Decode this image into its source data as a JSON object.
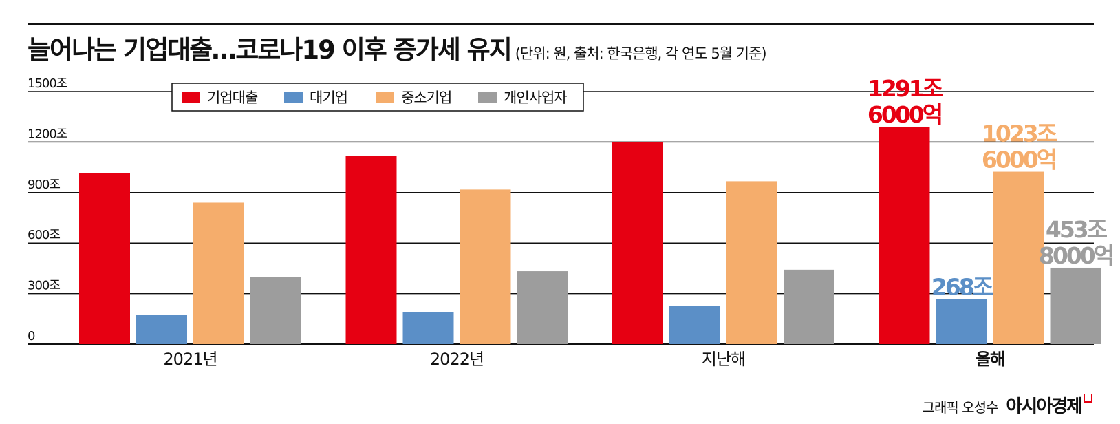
{
  "header": {
    "title": "늘어나는 기업대출…코로나19 이후 증가세 유지",
    "subtitle": "(단위: 원, 출처: 한국은행, 각 연도 5월 기준)"
  },
  "footer": {
    "credit": "그래픽 오성수",
    "brand": "아시아경제"
  },
  "colors": {
    "기업대출": "#e60012",
    "대기업": "#5b8fc7",
    "중소기업": "#f5ad6c",
    "개인사업자": "#9d9d9d"
  },
  "chart_data": {
    "type": "bar",
    "categories": [
      "2021년",
      "2022년",
      "지난해",
      "올해"
    ],
    "series": [
      {
        "name": "기업대출",
        "values": [
          1016,
          1117,
          1198,
          1291.6
        ]
      },
      {
        "name": "대기업",
        "values": [
          173,
          191,
          228,
          268
        ]
      },
      {
        "name": "중소기업",
        "values": [
          840,
          918,
          967,
          1023.6
        ]
      },
      {
        "name": "개인사업자",
        "values": [
          400,
          433,
          442,
          453.8
        ]
      }
    ],
    "ylim": [
      0,
      1500
    ],
    "yticks": [
      0,
      300,
      600,
      900,
      1200,
      1500
    ],
    "ytick_labels": [
      "0",
      "300조",
      "600조",
      "900조",
      "1200조",
      "1500조"
    ],
    "grid": true,
    "legend": "top-left",
    "annotations": [
      {
        "series": 0,
        "category": 3,
        "lines": [
          "1291조",
          "6000억"
        ]
      },
      {
        "series": 1,
        "category": 3,
        "lines": [
          "268조"
        ]
      },
      {
        "series": 2,
        "category": 3,
        "lines": [
          "1023조",
          "6000억"
        ]
      },
      {
        "series": 3,
        "category": 3,
        "lines": [
          "453조",
          "8000억"
        ]
      }
    ]
  }
}
